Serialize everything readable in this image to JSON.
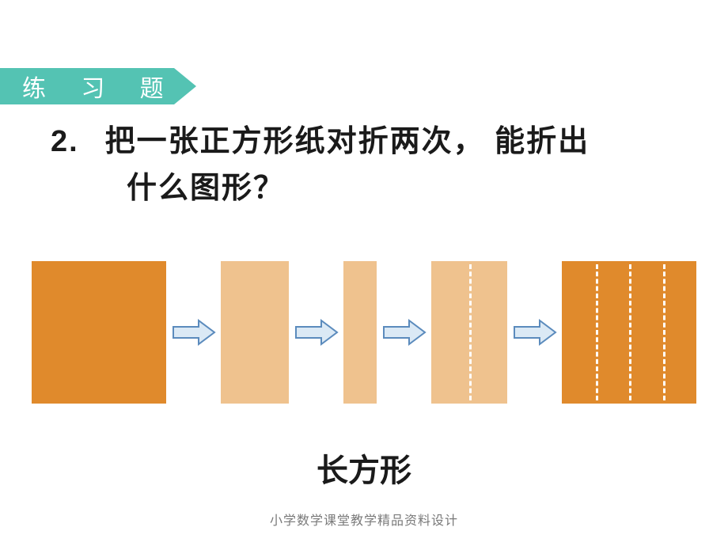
{
  "colors": {
    "banner_bg": "#54c3b3",
    "banner_text": "#ffffff",
    "text": "#1a1a1a",
    "footer_text": "#7a7a7a",
    "square_full": "#e08a2c",
    "strip_light": "#efc28e",
    "arrow_fill": "#dbe9f5",
    "arrow_stroke": "#5b8bbd",
    "dash": "#ffffff",
    "page_bg": "#ffffff"
  },
  "banner": {
    "label": "练 习 题"
  },
  "question": {
    "number": "2.",
    "line1": "把一张正方形纸对折两次， 能折出",
    "line2": "什么图形？"
  },
  "diagram": {
    "shapes": [
      {
        "kind": "square-full",
        "w": 170,
        "color_key": "square_full",
        "vlines": []
      },
      {
        "kind": "strip",
        "w": 86,
        "color_key": "strip_light",
        "vlines": []
      },
      {
        "kind": "strip-narrow",
        "w": 42,
        "color_key": "strip_light",
        "vlines": []
      },
      {
        "kind": "strip",
        "w": 96,
        "color_key": "strip_light",
        "vlines": [
          0.5
        ]
      },
      {
        "kind": "square-full",
        "w": 170,
        "color_key": "square_full",
        "vlines": [
          0.25,
          0.5,
          0.75
        ]
      }
    ],
    "arrow": {
      "w": 56,
      "h": 34
    }
  },
  "answer": "长方形",
  "footer": "小学数学课堂教学精品资料设计"
}
